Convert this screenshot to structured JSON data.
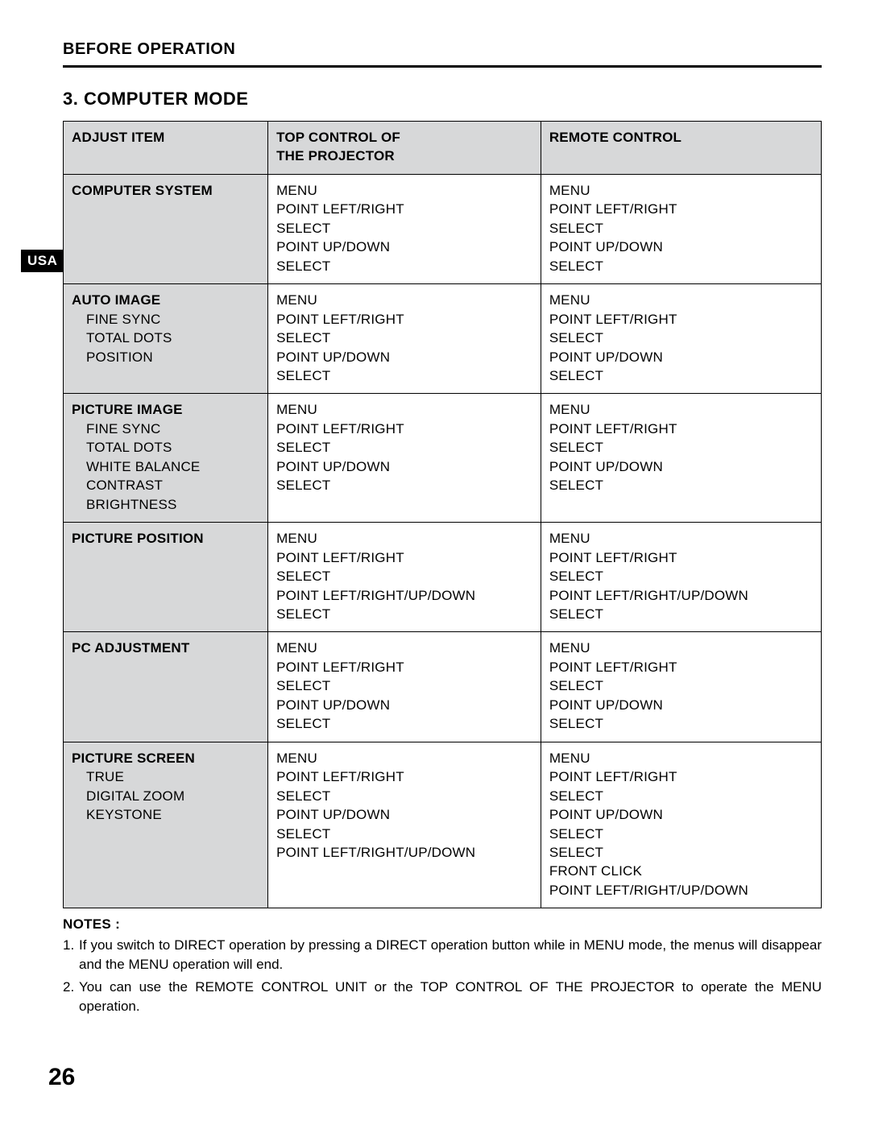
{
  "header": {
    "title": "BEFORE OPERATION"
  },
  "section": {
    "title": "3. COMPUTER MODE"
  },
  "usa_tab": "USA",
  "table": {
    "headers": {
      "adjust_item": "ADJUST ITEM",
      "top_control": "TOP CONTROL OF\nTHE PROJECTOR",
      "remote_control": "REMOTE CONTROL"
    },
    "rows": [
      {
        "item_head": "COMPUTER SYSTEM",
        "item_subs": [],
        "top": "MENU\nPOINT LEFT/RIGHT\nSELECT\nPOINT UP/DOWN\nSELECT",
        "remote": "MENU\nPOINT LEFT/RIGHT\nSELECT\nPOINT UP/DOWN\nSELECT"
      },
      {
        "item_head": "AUTO IMAGE",
        "item_subs": [
          "FINE SYNC",
          "TOTAL DOTS",
          "POSITION"
        ],
        "top": "MENU\nPOINT LEFT/RIGHT\nSELECT\nPOINT UP/DOWN\nSELECT",
        "remote": "MENU\nPOINT LEFT/RIGHT\nSELECT\nPOINT UP/DOWN\nSELECT"
      },
      {
        "item_head": "PICTURE IMAGE",
        "item_subs": [
          "FINE SYNC",
          "TOTAL DOTS",
          "WHITE BALANCE",
          "CONTRAST",
          "BRIGHTNESS"
        ],
        "top": "MENU\nPOINT LEFT/RIGHT\nSELECT\nPOINT UP/DOWN\nSELECT",
        "remote": "MENU\nPOINT LEFT/RIGHT\nSELECT\nPOINT UP/DOWN\nSELECT"
      },
      {
        "item_head": "PICTURE POSITION",
        "item_subs": [],
        "top": "MENU\nPOINT LEFT/RIGHT\nSELECT\nPOINT LEFT/RIGHT/UP/DOWN\nSELECT",
        "remote": "MENU\nPOINT LEFT/RIGHT\nSELECT\nPOINT LEFT/RIGHT/UP/DOWN\nSELECT"
      },
      {
        "item_head": "PC ADJUSTMENT",
        "item_subs": [],
        "top": "MENU\nPOINT LEFT/RIGHT\nSELECT\nPOINT UP/DOWN\nSELECT",
        "remote": "MENU\nPOINT LEFT/RIGHT\nSELECT\nPOINT UP/DOWN\nSELECT"
      },
      {
        "item_head": "PICTURE SCREEN",
        "item_subs": [
          "TRUE",
          "DIGITAL ZOOM",
          "KEYSTONE"
        ],
        "top": "MENU\nPOINT LEFT/RIGHT\nSELECT\nPOINT UP/DOWN\nSELECT\nPOINT LEFT/RIGHT/UP/DOWN",
        "remote": "MENU\nPOINT LEFT/RIGHT\nSELECT\nPOINT UP/DOWN\nSELECT\nSELECT\nFRONT CLICK\nPOINT LEFT/RIGHT/UP/DOWN"
      }
    ]
  },
  "notes": {
    "title": "NOTES :",
    "items": [
      {
        "num": "1.",
        "text": "If you switch to DIRECT operation by pressing a DIRECT operation button while in MENU mode, the menus will disappear and the MENU operation will end."
      },
      {
        "num": "2.",
        "text": "You can use the REMOTE CONTROL UNIT or the TOP CONTROL OF THE PROJECTOR to operate the MENU operation."
      }
    ]
  },
  "page_number": "26"
}
